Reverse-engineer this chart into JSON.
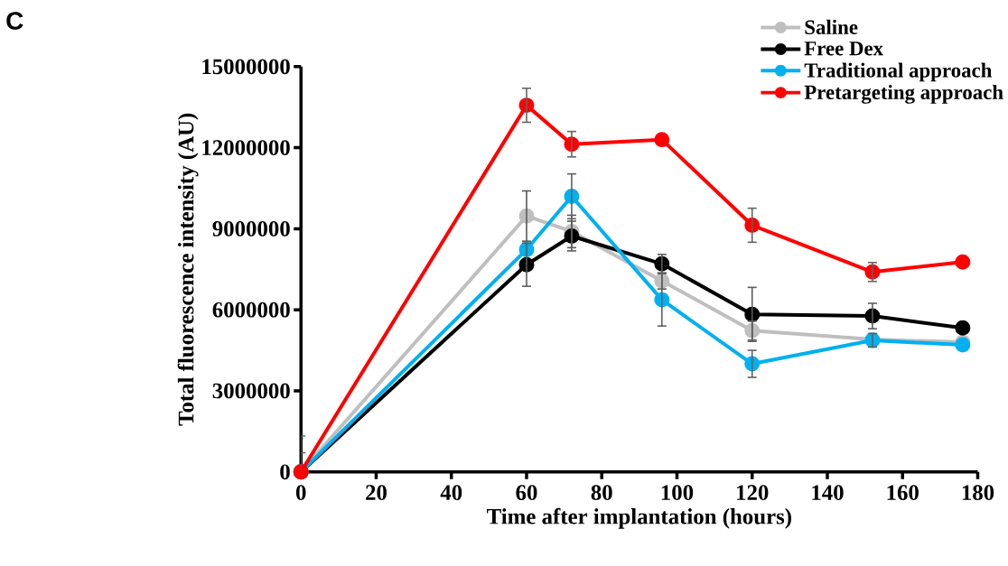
{
  "chart_data": {
    "type": "line",
    "annotations": [
      "C"
    ],
    "xlabel": "Time after implantation (hours)",
    "ylabel": "Total fluorescence intensity (AU)",
    "x": [
      0,
      60,
      72,
      96,
      120,
      152,
      176
    ],
    "xlim": [
      0,
      180
    ],
    "xticks": [
      0,
      20,
      40,
      60,
      80,
      100,
      120,
      140,
      160,
      180
    ],
    "ylim": [
      0,
      15000000
    ],
    "yticks": [
      0,
      3000000,
      6000000,
      9000000,
      12000000,
      15000000
    ],
    "marker": "circle",
    "line_style": "solid",
    "grid": false,
    "legend": "top right",
    "series": [
      {
        "name": "Saline",
        "color": "#bfbfbf",
        "values": [
          0,
          9470000,
          8900000,
          7070000,
          5230000,
          4900000,
          4800000
        ],
        "errors": [
          1330000,
          930000,
          600000,
          300000,
          350000,
          null,
          null
        ]
      },
      {
        "name": "Free Dex",
        "color": "#000000",
        "values": [
          0,
          7670000,
          8730000,
          7700000,
          5830000,
          5770000,
          5330000
        ],
        "errors": [
          700000,
          800000,
          550000,
          350000,
          1000000,
          470000,
          null
        ]
      },
      {
        "name": "Traditional approach",
        "color": "#00b0f0",
        "values": [
          0,
          8230000,
          10200000,
          6370000,
          4000000,
          4870000,
          4700000
        ],
        "errors": [
          null,
          null,
          830000,
          970000,
          500000,
          250000,
          null
        ]
      },
      {
        "name": "Pretargeting approach",
        "color": "#ff0000",
        "values": [
          0,
          13570000,
          12130000,
          12300000,
          9130000,
          7400000,
          7770000
        ],
        "errors": [
          null,
          630000,
          470000,
          null,
          630000,
          350000,
          null
        ]
      }
    ]
  }
}
